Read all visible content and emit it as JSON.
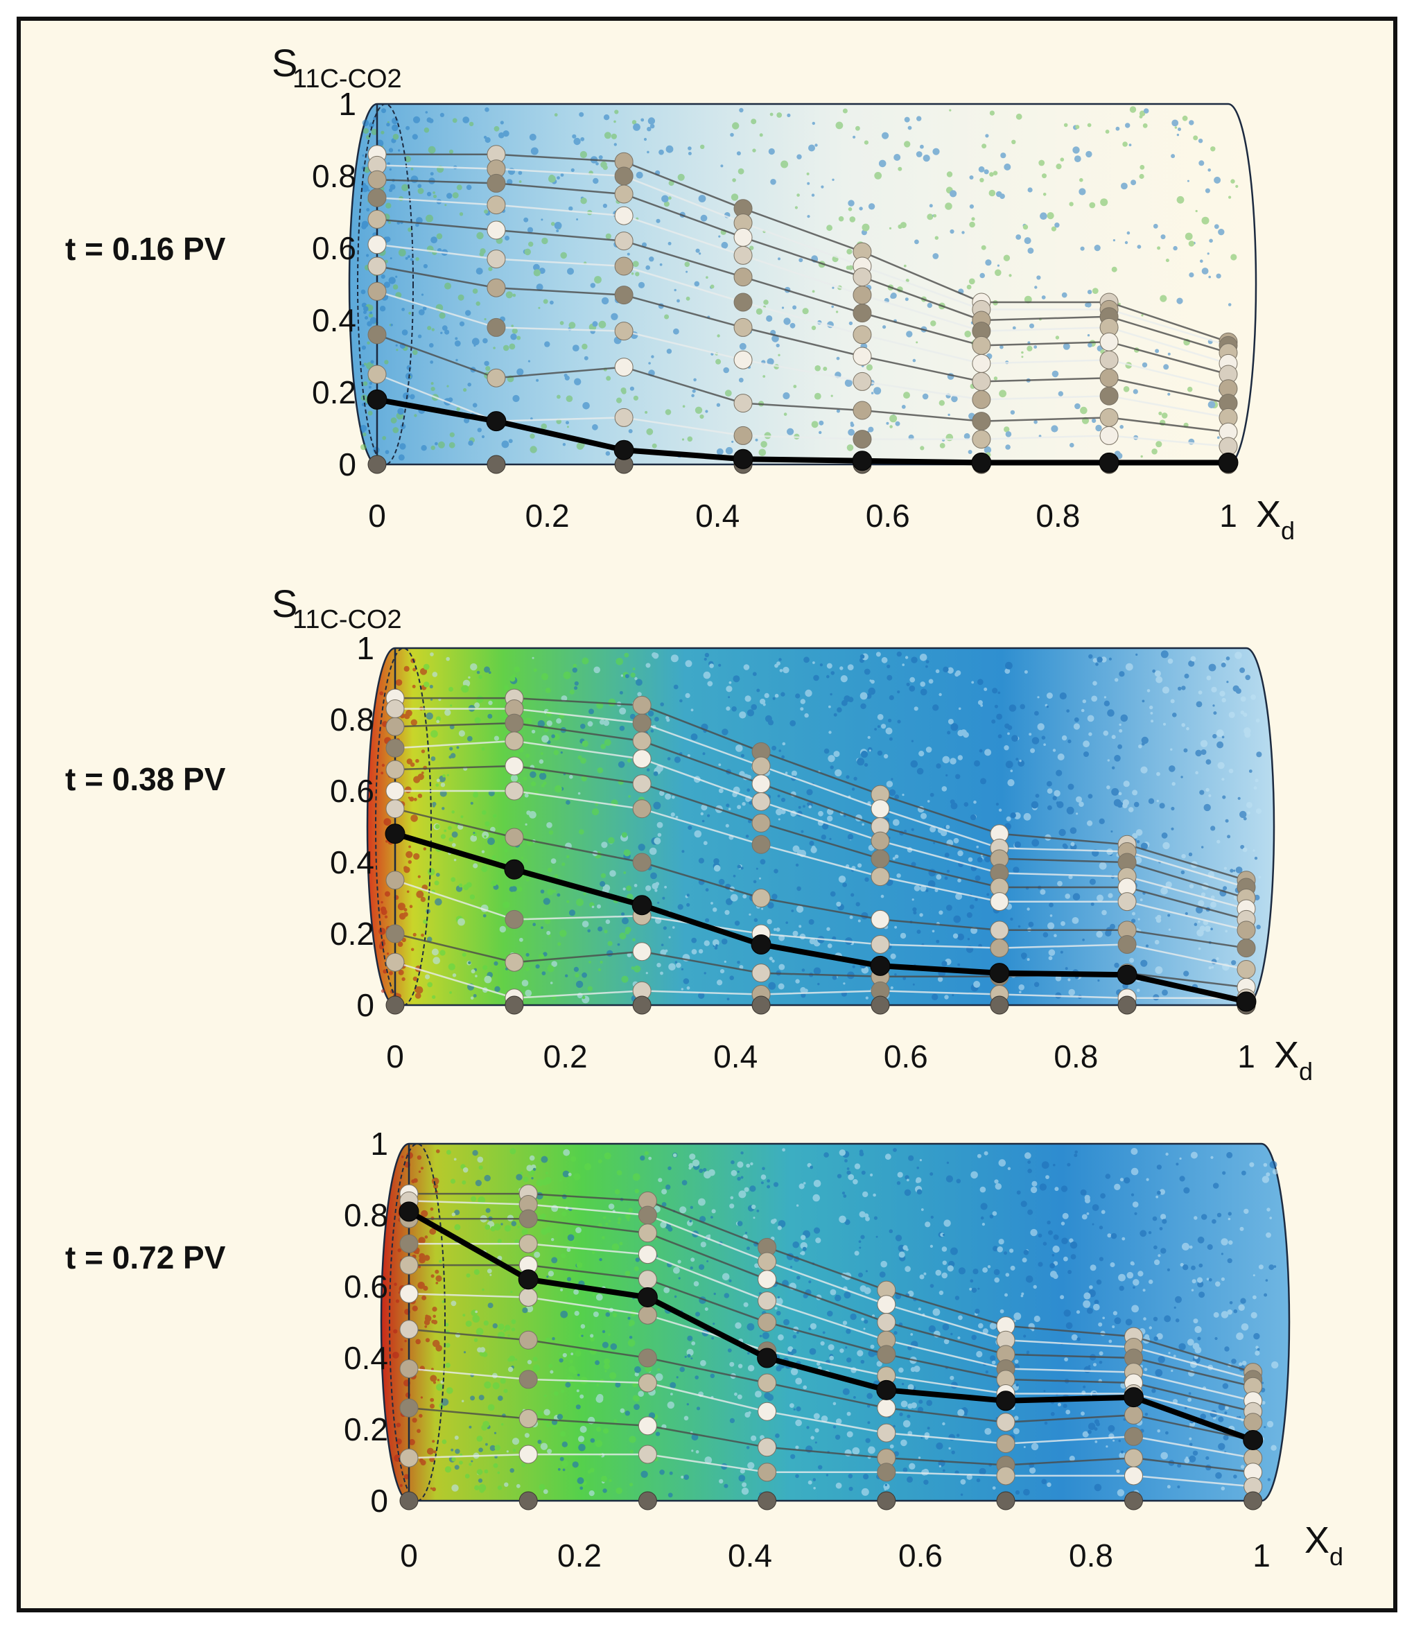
{
  "chart_data": [
    {
      "type": "line",
      "panel_label": "t = 0.16 PV",
      "ylabel": "S",
      "ylabel_sub": "11C-CO2",
      "xlabel": "X",
      "xlabel_sub": "d",
      "xlim": [
        0,
        1
      ],
      "ylim": [
        0,
        1
      ],
      "x_ticks": [
        "0",
        "0.2",
        "0.4",
        "0.6",
        "0.8",
        "1"
      ],
      "y_ticks": [
        "0",
        "0.2",
        "0.4",
        "0.6",
        "0.8",
        "1"
      ],
      "x": [
        0,
        0.14,
        0.29,
        0.43,
        0.57,
        0.71,
        0.86,
        1.0
      ],
      "current_series": [
        0.18,
        0.12,
        0.04,
        0.015,
        0.01,
        0.005,
        0.005,
        0.005
      ],
      "other_series": [
        [
          0.86,
          0.86,
          0.84,
          0.71,
          0.59,
          0.45,
          0.45,
          0.34
        ],
        [
          0.83,
          0.82,
          0.8,
          0.67,
          0.55,
          0.43,
          0.43,
          0.33
        ],
        [
          0.79,
          0.78,
          0.75,
          0.63,
          0.52,
          0.4,
          0.41,
          0.31
        ],
        [
          0.74,
          0.72,
          0.69,
          0.58,
          0.47,
          0.37,
          0.38,
          0.28
        ],
        [
          0.68,
          0.65,
          0.62,
          0.52,
          0.42,
          0.33,
          0.34,
          0.25
        ],
        [
          0.61,
          0.57,
          0.55,
          0.45,
          0.36,
          0.28,
          0.29,
          0.21
        ],
        [
          0.55,
          0.49,
          0.47,
          0.38,
          0.3,
          0.23,
          0.24,
          0.17
        ],
        [
          0.48,
          0.38,
          0.37,
          0.29,
          0.23,
          0.18,
          0.19,
          0.13
        ],
        [
          0.36,
          0.24,
          0.27,
          0.17,
          0.15,
          0.12,
          0.13,
          0.09
        ],
        [
          0.25,
          0.12,
          0.13,
          0.08,
          0.07,
          0.07,
          0.08,
          0.05
        ]
      ]
    },
    {
      "type": "line",
      "panel_label": "t = 0.38 PV",
      "ylabel": "S",
      "ylabel_sub": "11C-CO2",
      "xlabel": "X",
      "xlabel_sub": "d",
      "xlim": [
        0,
        1
      ],
      "ylim": [
        0,
        1
      ],
      "x_ticks": [
        "0",
        "0.2",
        "0.4",
        "0.6",
        "0.8",
        "1"
      ],
      "y_ticks": [
        "0",
        "0.2",
        "0.4",
        "0.6",
        "0.8",
        "1"
      ],
      "x": [
        0,
        0.14,
        0.29,
        0.43,
        0.57,
        0.71,
        0.86,
        1.0
      ],
      "current_series": [
        0.48,
        0.38,
        0.28,
        0.17,
        0.11,
        0.09,
        0.085,
        0.01
      ],
      "other_series": [
        [
          0.86,
          0.86,
          0.84,
          0.71,
          0.59,
          0.48,
          0.45,
          0.35
        ],
        [
          0.83,
          0.83,
          0.79,
          0.67,
          0.55,
          0.44,
          0.43,
          0.33
        ],
        [
          0.78,
          0.79,
          0.74,
          0.62,
          0.5,
          0.41,
          0.4,
          0.3
        ],
        [
          0.72,
          0.74,
          0.69,
          0.57,
          0.46,
          0.37,
          0.36,
          0.27
        ],
        [
          0.66,
          0.67,
          0.62,
          0.51,
          0.41,
          0.33,
          0.33,
          0.24
        ],
        [
          0.6,
          0.6,
          0.55,
          0.45,
          0.36,
          0.29,
          0.29,
          0.21
        ],
        [
          0.55,
          0.47,
          0.4,
          0.3,
          0.24,
          0.21,
          0.21,
          0.16
        ],
        [
          0.35,
          0.24,
          0.25,
          0.2,
          0.17,
          0.16,
          0.17,
          0.1
        ],
        [
          0.2,
          0.12,
          0.15,
          0.09,
          0.08,
          0.08,
          0.09,
          0.05
        ],
        [
          0.12,
          0.02,
          0.04,
          0.03,
          0.04,
          0.03,
          0.02,
          0.02
        ]
      ]
    },
    {
      "type": "line",
      "panel_label": "t = 0.72 PV",
      "ylabel": "",
      "ylabel_sub": "",
      "xlabel": "X",
      "xlabel_sub": "d",
      "xlim": [
        0,
        1
      ],
      "ylim": [
        0,
        1
      ],
      "x_ticks": [
        "0",
        "0.2",
        "0.4",
        "0.6",
        "0.8",
        "1"
      ],
      "y_ticks": [
        "0",
        "0.2",
        "0.4",
        "0.6",
        "0.8",
        "1"
      ],
      "x": [
        0,
        0.14,
        0.28,
        0.42,
        0.56,
        0.7,
        0.85,
        0.99
      ],
      "current_series": [
        0.81,
        0.62,
        0.57,
        0.4,
        0.31,
        0.28,
        0.29,
        0.17
      ],
      "other_series": [
        [
          0.86,
          0.86,
          0.84,
          0.71,
          0.59,
          0.49,
          0.46,
          0.36
        ],
        [
          0.84,
          0.83,
          0.8,
          0.67,
          0.55,
          0.45,
          0.43,
          0.34
        ],
        [
          0.79,
          0.79,
          0.75,
          0.62,
          0.5,
          0.41,
          0.4,
          0.32
        ],
        [
          0.72,
          0.72,
          0.69,
          0.56,
          0.45,
          0.37,
          0.36,
          0.28
        ],
        [
          0.66,
          0.66,
          0.62,
          0.5,
          0.41,
          0.34,
          0.33,
          0.25
        ],
        [
          0.58,
          0.57,
          0.52,
          0.42,
          0.35,
          0.3,
          0.3,
          0.22
        ],
        [
          0.48,
          0.45,
          0.4,
          0.33,
          0.26,
          0.22,
          0.24,
          0.17
        ],
        [
          0.37,
          0.34,
          0.33,
          0.25,
          0.19,
          0.16,
          0.18,
          0.12
        ],
        [
          0.26,
          0.23,
          0.21,
          0.15,
          0.12,
          0.1,
          0.12,
          0.08
        ],
        [
          0.12,
          0.13,
          0.13,
          0.08,
          0.08,
          0.07,
          0.07,
          0.04
        ]
      ]
    }
  ]
}
